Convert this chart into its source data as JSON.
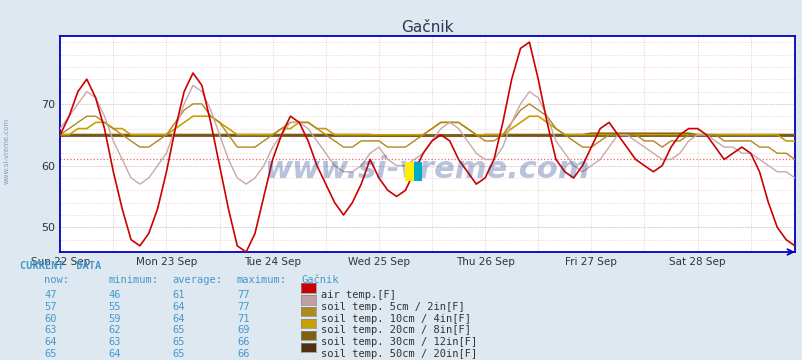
{
  "title": "Gačnik",
  "bg_color": "#dde8f0",
  "plot_bg_color": "#ffffff",
  "ylim": [
    46,
    81
  ],
  "yticks": [
    50,
    60,
    70
  ],
  "x_labels": [
    "Sun 22 Sep",
    "Mon 23 Sep",
    "Tue 24 Sep",
    "Wed 25 Sep",
    "Thu 26 Sep",
    "Fri 27 Sep",
    "Sat 28 Sep"
  ],
  "n_points": 84,
  "hline_air_avg": 61,
  "hline_soil_avg": 65,
  "series_colors": {
    "air_temp": "#cc0000",
    "soil_5cm": "#c8a8a8",
    "soil_10cm": "#b08820",
    "soil_20cm": "#c8a000",
    "soil_30cm": "#806010",
    "soil_50cm": "#503010"
  },
  "series_lw": {
    "air_temp": 1.2,
    "soil_5cm": 1.0,
    "soil_10cm": 1.0,
    "soil_20cm": 1.2,
    "soil_30cm": 1.5,
    "soil_50cm": 1.8
  },
  "legend_swatch_colors": [
    "#cc0000",
    "#c0a0a0",
    "#b08820",
    "#c8a000",
    "#806010",
    "#503010"
  ],
  "table_headers": [
    "now:",
    "minimum:",
    "average:",
    "maximum:",
    "Gačnik"
  ],
  "table_rows": [
    [
      47,
      46,
      61,
      77,
      "air temp.[F]"
    ],
    [
      57,
      55,
      64,
      77,
      "soil temp. 5cm / 2in[F]"
    ],
    [
      60,
      59,
      64,
      71,
      "soil temp. 10cm / 4in[F]"
    ],
    [
      63,
      62,
      65,
      69,
      "soil temp. 20cm / 8in[F]"
    ],
    [
      64,
      63,
      65,
      66,
      "soil temp. 30cm / 12in[F]"
    ],
    [
      65,
      64,
      65,
      66,
      "soil temp. 50cm / 20in[F]"
    ]
  ],
  "watermark": "www.si-vreme.com",
  "side_text": "www.si-vreme.com",
  "axis_color": "#0000bb",
  "text_color": "#4499cc",
  "label_color": "#333333"
}
